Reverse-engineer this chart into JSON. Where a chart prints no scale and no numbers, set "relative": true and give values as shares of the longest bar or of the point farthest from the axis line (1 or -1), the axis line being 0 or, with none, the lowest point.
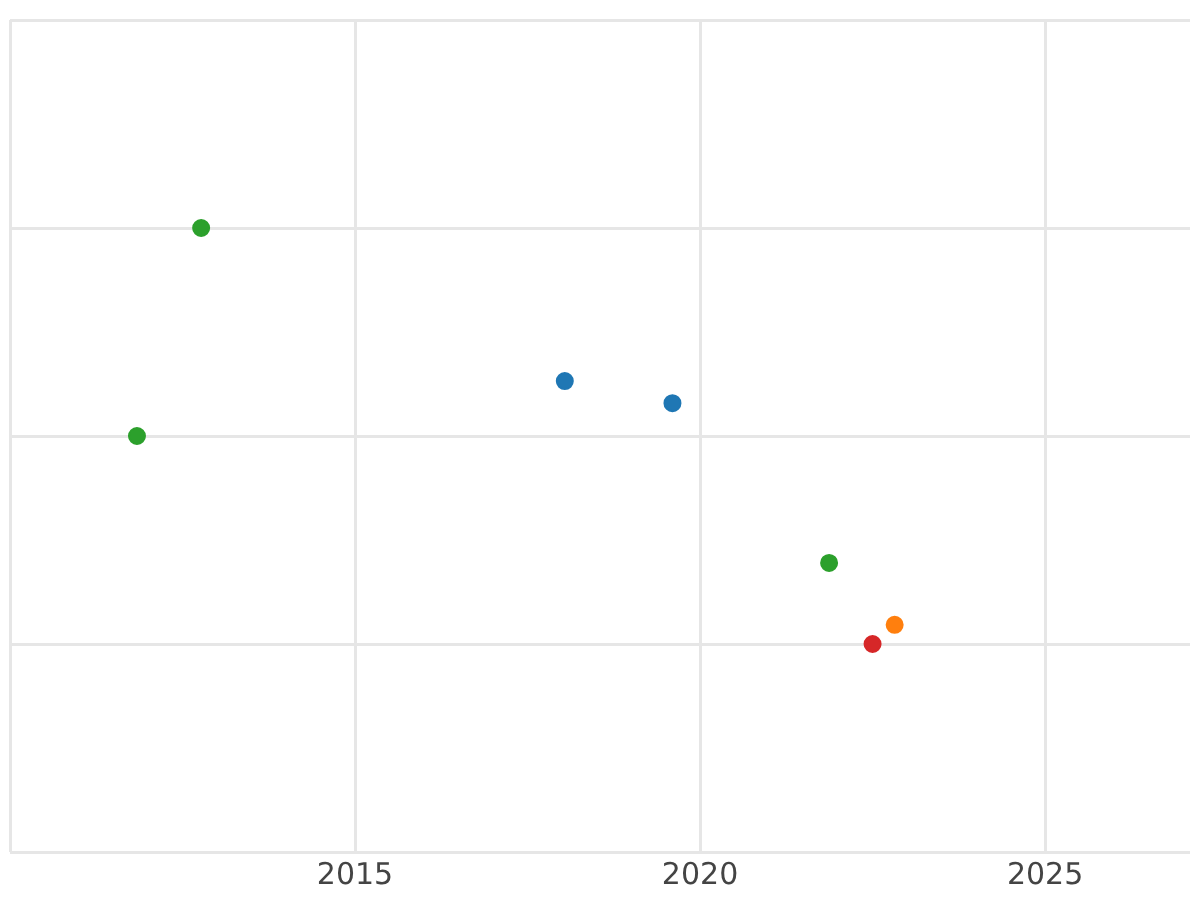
{
  "chart_data": {
    "type": "scatter",
    "relative": true,
    "xlim": [
      2010,
      2027.1
    ],
    "xticks": [
      {
        "value": 2010,
        "label": null
      },
      2015,
      2020,
      2025
    ],
    "grid": true,
    "legend": false,
    "marker": "circle",
    "series": [
      {
        "color": "#2ca02c",
        "x": [
          2011.84,
          2012.77,
          2021.87
        ],
        "values": [
          0.5,
          1,
          0.195
        ]
      },
      {
        "color": "#1f77b4",
        "x": [
          2018.04,
          2019.6
        ],
        "values": [
          0.632,
          0.579
        ]
      },
      {
        "color": "#ff7f0e",
        "x": [
          2022.82
        ],
        "values": [
          0.046
        ]
      },
      {
        "color": "#d62728",
        "x": [
          2022.5
        ],
        "values": [
          0
        ]
      }
    ]
  }
}
